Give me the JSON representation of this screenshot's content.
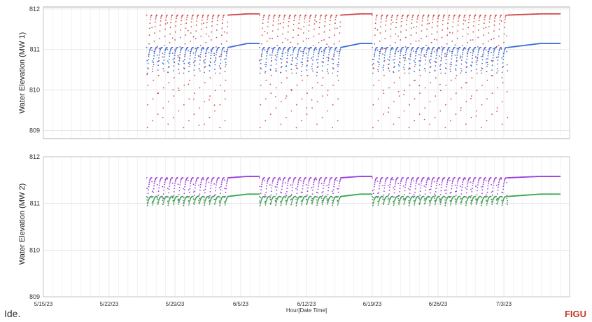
{
  "corner_left_text": "Ide.",
  "corner_right_text": "FIGU",
  "chart_data": [
    {
      "type": "scatter",
      "ylabel": "Water Elevation (MW 1)",
      "xlabel": "Hour[Date Time]",
      "x_ticks": [
        "5/15/23",
        "5/22/23",
        "5/29/23",
        "6/5/23",
        "6/12/23",
        "6/19/23",
        "6/26/23",
        "7/3/23"
      ],
      "y_ticks": [
        809,
        810,
        811,
        812
      ],
      "ylim": [
        808.8,
        812.05
      ],
      "xlim": [
        "5/15/23",
        "7/10/23"
      ],
      "grid": true,
      "data_periods": [
        [
          "5/26/23",
          "6/7/23"
        ],
        [
          "6/7/23",
          "6/19/23"
        ],
        [
          "6/19/23",
          "7/9/23"
        ]
      ],
      "series": [
        {
          "color": "#d04a4a",
          "low": 809.0,
          "high": 811.85,
          "recovered": 811.88
        },
        {
          "color": "#3f6fd6",
          "low": 810.4,
          "high": 811.05,
          "recovered": 811.15
        }
      ]
    },
    {
      "type": "scatter",
      "ylabel": "Water Elevation (MW 2)",
      "xlabel": "Hour[Date Time]",
      "x_ticks": [
        "5/15/23",
        "5/22/23",
        "5/29/23",
        "6/5/23",
        "6/12/23",
        "6/19/23",
        "6/26/23",
        "7/3/23"
      ],
      "y_ticks": [
        809,
        810,
        811,
        812
      ],
      "ylim": [
        809,
        812
      ],
      "xlim": [
        "5/15/23",
        "7/10/23"
      ],
      "grid": true,
      "data_periods": [
        [
          "5/26/23",
          "6/7/23"
        ],
        [
          "6/7/23",
          "6/19/23"
        ],
        [
          "6/19/23",
          "7/9/23"
        ]
      ],
      "series": [
        {
          "color": "#9b3fd8",
          "low": 811.0,
          "high": 811.55,
          "recovered": 811.58
        },
        {
          "color": "#3aa64a",
          "low": 810.95,
          "high": 811.15,
          "recovered": 811.2
        }
      ]
    }
  ]
}
